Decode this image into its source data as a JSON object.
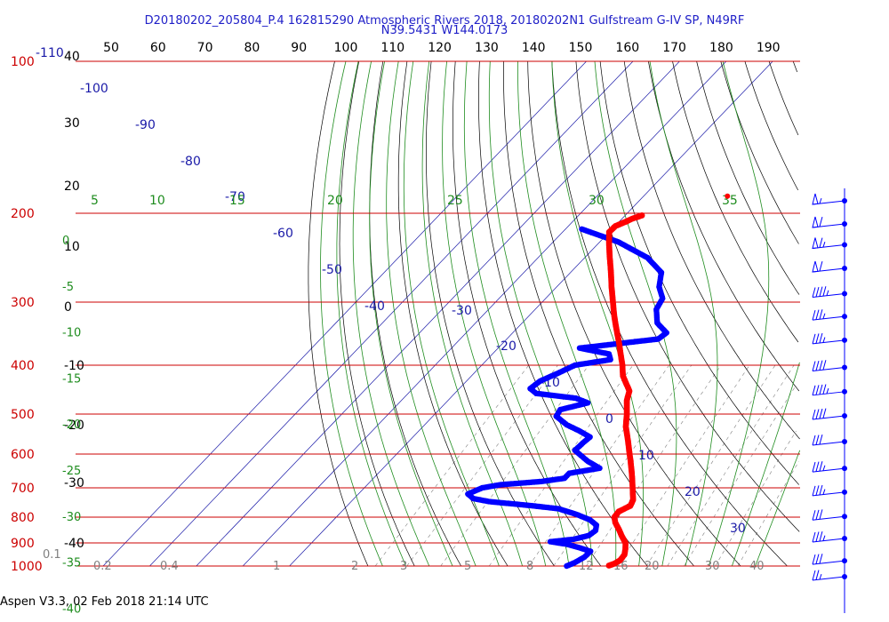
{
  "header": {
    "title_line1": "D20180202_205804_P.4 162815290 Atmospheric Rivers 2018, 20180202N1 Gulfstream G-IV SP, N49RF",
    "title_line2": "N39.5431 W144.0173"
  },
  "footer": {
    "text": "Aspen V3.3, 02 Feb 2018  21:14 UTC"
  },
  "chart_data": {
    "type": "skew-t log-p diagram",
    "colors": {
      "isobar": "#cc0000",
      "isotherm": "#1a1aa8",
      "dry_adiabat": "#000000",
      "moist_adiabat": "#1e8c1e",
      "mixing_ratio": "#808080",
      "temperature": "#ff0000",
      "dewpoint": "#0000ff",
      "wind_barb": "#0000ff"
    },
    "pressure_axis": {
      "range_hPa": [
        100,
        1000
      ],
      "ticks": [
        "100",
        "200",
        "300",
        "400",
        "500",
        "600",
        "700",
        "800",
        "900",
        "1000"
      ]
    },
    "top_axis": {
      "ticks": [
        "50",
        "60",
        "70",
        "80",
        "90",
        "100",
        "110",
        "120",
        "130",
        "140",
        "150",
        "160",
        "170",
        "180",
        "190"
      ]
    },
    "left_temp_axis": {
      "ticks": [
        "40",
        "30",
        "20",
        "10",
        "0",
        "-10",
        "-20",
        "-30",
        "-40"
      ]
    },
    "isotherm_labels": [
      "-110",
      "-100",
      "-90",
      "-80",
      "-70",
      "-60",
      "-50",
      "-40",
      "-30",
      "-20",
      "-10",
      "0",
      "10",
      "20",
      "30"
    ],
    "moist_adiabat_labels": [
      "5",
      "10",
      "15",
      "20",
      "25",
      "30",
      "35"
    ],
    "moist_left_labels": [
      "0",
      "-5",
      "-10",
      "-15",
      "-20",
      "-25",
      "-30",
      "-35",
      "-40"
    ],
    "mixing_ratio_labels": [
      "0.1",
      "0.2",
      "0.4",
      "1",
      "2",
      "3",
      "5",
      "8",
      "12",
      "16",
      "20",
      "30",
      "40"
    ],
    "temperature_profile": [
      {
        "p": 998,
        "t": 8.5
      },
      {
        "p": 990,
        "t": 9.2
      },
      {
        "p": 975,
        "t": 9.8
      },
      {
        "p": 950,
        "t": 9.6
      },
      {
        "p": 925,
        "t": 8.6
      },
      {
        "p": 900,
        "t": 7.4
      },
      {
        "p": 870,
        "t": 5.0
      },
      {
        "p": 850,
        "t": 3.5
      },
      {
        "p": 820,
        "t": 1.0
      },
      {
        "p": 800,
        "t": -0.3
      },
      {
        "p": 780,
        "t": -0.5
      },
      {
        "p": 760,
        "t": 0.8
      },
      {
        "p": 740,
        "t": 0.2
      },
      {
        "p": 700,
        "t": -2.4
      },
      {
        "p": 660,
        "t": -5.2
      },
      {
        "p": 620,
        "t": -8.3
      },
      {
        "p": 600,
        "t": -10.0
      },
      {
        "p": 560,
        "t": -13.5
      },
      {
        "p": 530,
        "t": -16.4
      },
      {
        "p": 500,
        "t": -18.8
      },
      {
        "p": 470,
        "t": -21.6
      },
      {
        "p": 450,
        "t": -23.0
      },
      {
        "p": 420,
        "t": -27.5
      },
      {
        "p": 400,
        "t": -29.8
      },
      {
        "p": 380,
        "t": -32.5
      },
      {
        "p": 360,
        "t": -35.3
      },
      {
        "p": 340,
        "t": -38.4
      },
      {
        "p": 320,
        "t": -41.6
      },
      {
        "p": 300,
        "t": -44.8
      },
      {
        "p": 280,
        "t": -48.2
      },
      {
        "p": 260,
        "t": -51.7
      },
      {
        "p": 245,
        "t": -54.6
      },
      {
        "p": 230,
        "t": -57.6
      },
      {
        "p": 218,
        "t": -60.0
      },
      {
        "p": 212,
        "t": -59.9
      },
      {
        "p": 208,
        "t": -58.6
      },
      {
        "p": 205,
        "t": -57.8
      },
      {
        "p": 202,
        "t": -56.4
      }
    ],
    "dewpoint_profile": [
      {
        "p": 1000,
        "t": -0.5
      },
      {
        "p": 985,
        "t": 0.5
      },
      {
        "p": 960,
        "t": 1.5
      },
      {
        "p": 935,
        "t": 1.6
      },
      {
        "p": 920,
        "t": -1.5
      },
      {
        "p": 905,
        "t": -5.0
      },
      {
        "p": 895,
        "t": -9.0
      },
      {
        "p": 885,
        "t": -4.5
      },
      {
        "p": 870,
        "t": -2.0
      },
      {
        "p": 850,
        "t": -1.6
      },
      {
        "p": 830,
        "t": -2.5
      },
      {
        "p": 810,
        "t": -5.0
      },
      {
        "p": 790,
        "t": -9.0
      },
      {
        "p": 770,
        "t": -14.0
      },
      {
        "p": 760,
        "t": -20.0
      },
      {
        "p": 745,
        "t": -30.5
      },
      {
        "p": 735,
        "t": -34.4
      },
      {
        "p": 720,
        "t": -36.5
      },
      {
        "p": 700,
        "t": -34.7
      },
      {
        "p": 690,
        "t": -31.4
      },
      {
        "p": 680,
        "t": -23.3
      },
      {
        "p": 670,
        "t": -19.0
      },
      {
        "p": 655,
        "t": -19.0
      },
      {
        "p": 640,
        "t": -13.5
      },
      {
        "p": 620,
        "t": -17.5
      },
      {
        "p": 590,
        "t": -22.5
      },
      {
        "p": 570,
        "t": -22.3
      },
      {
        "p": 555,
        "t": -22.0
      },
      {
        "p": 540,
        "t": -25.5
      },
      {
        "p": 525,
        "t": -29.5
      },
      {
        "p": 505,
        "t": -33.5
      },
      {
        "p": 490,
        "t": -34.0
      },
      {
        "p": 475,
        "t": -29.5
      },
      {
        "p": 465,
        "t": -33.0
      },
      {
        "p": 455,
        "t": -42.5
      },
      {
        "p": 445,
        "t": -44.8
      },
      {
        "p": 430,
        "t": -44.2
      },
      {
        "p": 415,
        "t": -42.0
      },
      {
        "p": 400,
        "t": -40.0
      },
      {
        "p": 390,
        "t": -33.5
      },
      {
        "p": 380,
        "t": -35.0
      },
      {
        "p": 370,
        "t": -42.5
      },
      {
        "p": 355,
        "t": -27.5
      },
      {
        "p": 345,
        "t": -27.0
      },
      {
        "p": 330,
        "t": -31.0
      },
      {
        "p": 310,
        "t": -34.0
      },
      {
        "p": 295,
        "t": -34.9
      },
      {
        "p": 280,
        "t": -38.0
      },
      {
        "p": 262,
        "t": -40.5
      },
      {
        "p": 245,
        "t": -46.5
      },
      {
        "p": 228,
        "t": -56.0
      },
      {
        "p": 215,
        "t": -66.5
      }
    ],
    "wind_barbs": [
      {
        "p": 180,
        "speed_kt": 55
      },
      {
        "p": 200,
        "speed_kt": 60
      },
      {
        "p": 220,
        "speed_kt": 65
      },
      {
        "p": 245,
        "speed_kt": 60
      },
      {
        "p": 275,
        "speed_kt": 45
      },
      {
        "p": 305,
        "speed_kt": 35
      },
      {
        "p": 340,
        "speed_kt": 35
      },
      {
        "p": 385,
        "speed_kt": 40
      },
      {
        "p": 430,
        "speed_kt": 45
      },
      {
        "p": 480,
        "speed_kt": 40
      },
      {
        "p": 540,
        "speed_kt": 30
      },
      {
        "p": 610,
        "speed_kt": 35
      },
      {
        "p": 680,
        "speed_kt": 35
      },
      {
        "p": 760,
        "speed_kt": 30
      },
      {
        "p": 840,
        "speed_kt": 35
      },
      {
        "p": 930,
        "speed_kt": 30
      },
      {
        "p": 1000,
        "speed_kt": 25
      }
    ],
    "marker_point": {
      "p": 185,
      "t": -42
    }
  }
}
